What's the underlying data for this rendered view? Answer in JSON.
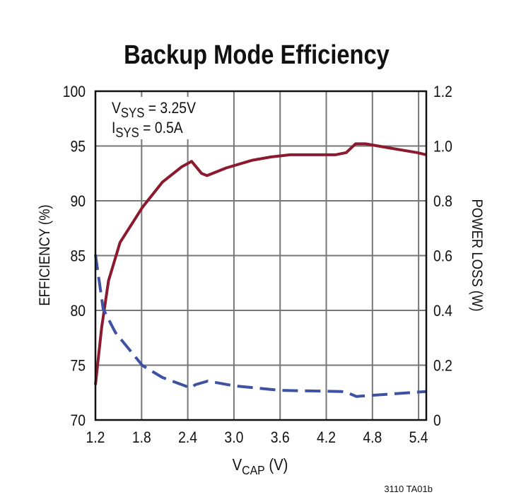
{
  "chart_data": {
    "type": "line",
    "title": "Backup Mode Efficiency",
    "xlabel": "V",
    "xlabel_sub": "CAP",
    "xlabel_unit": " (V)",
    "ylabel": "EFFICIENCY (%)",
    "y2label": "POWER LOSS (W)",
    "xlim": [
      1.2,
      5.5
    ],
    "ylim": [
      70,
      100
    ],
    "y2lim": [
      0,
      1.2
    ],
    "xticks": [
      "1.2",
      "1.8",
      "2.4",
      "3.0",
      "3.6",
      "4.2",
      "4.8",
      "5.4"
    ],
    "yticks": [
      "70",
      "75",
      "80",
      "85",
      "90",
      "95",
      "100"
    ],
    "y2ticks": [
      "0",
      "0.2",
      "0.4",
      "0.6",
      "0.8",
      "1.0",
      "1.2"
    ],
    "grid": true,
    "annotations": [
      {
        "main": "V",
        "sub": "SYS",
        "rest": " = 3.25V"
      },
      {
        "main": "I",
        "sub": "SYS",
        "rest": " = 0.5A"
      }
    ],
    "footnote": "3110 TA01b",
    "series": [
      {
        "axis": "left",
        "color": "#8b1a2e",
        "style": "solid",
        "x": [
          1.2,
          1.28,
          1.37,
          1.52,
          1.81,
          2.07,
          2.32,
          2.45,
          2.58,
          2.65,
          2.9,
          3.24,
          3.48,
          3.73,
          4.32,
          4.46,
          4.58,
          4.71,
          5.04,
          5.38,
          5.5
        ],
        "y": [
          73.2,
          78.4,
          82.7,
          86.2,
          89.4,
          91.7,
          93.1,
          93.6,
          92.5,
          92.3,
          93.0,
          93.7,
          94.0,
          94.2,
          94.2,
          94.4,
          95.2,
          95.2,
          94.8,
          94.4,
          94.2
        ]
      },
      {
        "axis": "right",
        "color": "#3f51a3",
        "style": "dashed",
        "x": [
          1.2,
          1.3,
          1.46,
          1.81,
          2.07,
          2.44,
          2.5,
          2.66,
          3.0,
          3.6,
          4.4,
          4.48,
          4.59,
          5.5
        ],
        "y": [
          0.604,
          0.406,
          0.319,
          0.199,
          0.155,
          0.117,
          0.129,
          0.142,
          0.125,
          0.108,
          0.104,
          0.099,
          0.086,
          0.104
        ]
      }
    ]
  }
}
